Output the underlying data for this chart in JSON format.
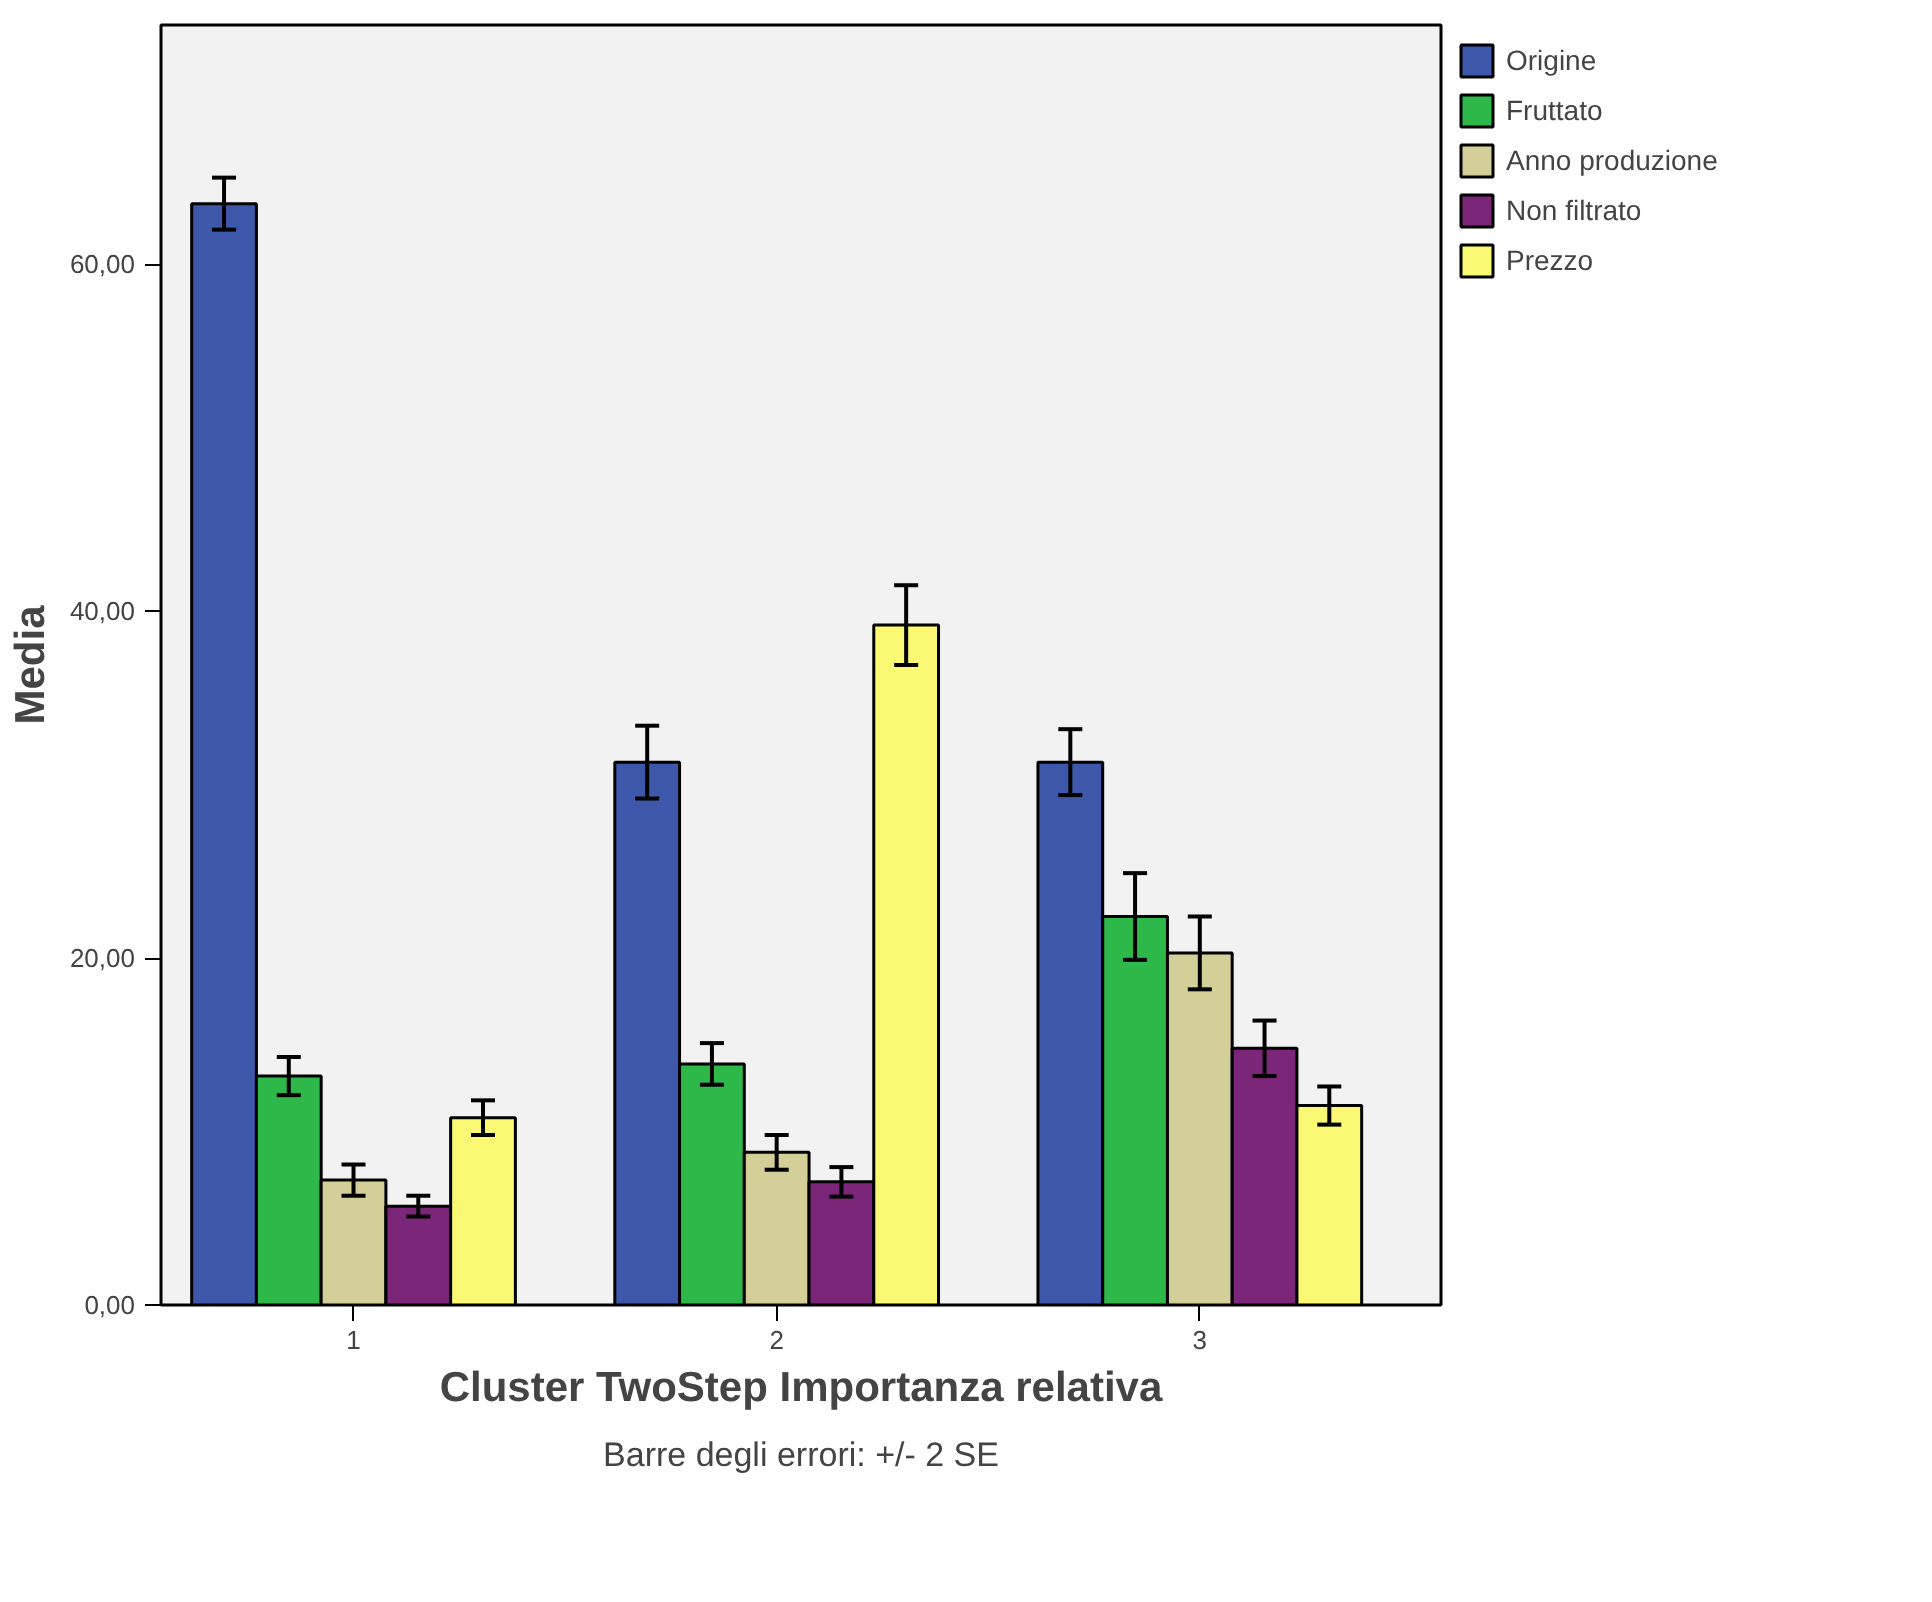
{
  "chart_data": {
    "type": "bar",
    "xlabel": "Cluster TwoStep Importanza relativa",
    "ylabel": "Media",
    "categories": [
      "1",
      "2",
      "3"
    ],
    "series": [
      {
        "name": "Origine",
        "color": "#3d57ab",
        "values": [
          63.5,
          31.3,
          31.3
        ],
        "errors": [
          1.5,
          2.1,
          1.9
        ]
      },
      {
        "name": "Fruttato",
        "color": "#2fb84a",
        "values": [
          13.2,
          13.9,
          22.4
        ],
        "errors": [
          1.1,
          1.2,
          2.5
        ]
      },
      {
        "name": "Anno produzione",
        "color": "#d4cf99",
        "values": [
          7.2,
          8.8,
          20.3
        ],
        "errors": [
          0.9,
          1.0,
          2.1
        ]
      },
      {
        "name": "Non filtrato",
        "color": "#7b2679",
        "values": [
          5.7,
          7.1,
          14.8
        ],
        "errors": [
          0.6,
          0.85,
          1.6
        ]
      },
      {
        "name": "Prezzo",
        "color": "#fbf874",
        "values": [
          10.8,
          39.2,
          11.5
        ],
        "errors": [
          1.0,
          2.3,
          1.1
        ]
      }
    ],
    "ylim": [
      0,
      73.8
    ],
    "yticks": [
      {
        "value": 0,
        "label": "0,00"
      },
      {
        "value": 20,
        "label": "20,00"
      },
      {
        "value": 40,
        "label": "40,00"
      },
      {
        "value": 60,
        "label": "60,00"
      }
    ],
    "annotations": [
      "Barre degli errori: +/- 2 SE"
    ],
    "legend": "top right",
    "grid": false
  }
}
